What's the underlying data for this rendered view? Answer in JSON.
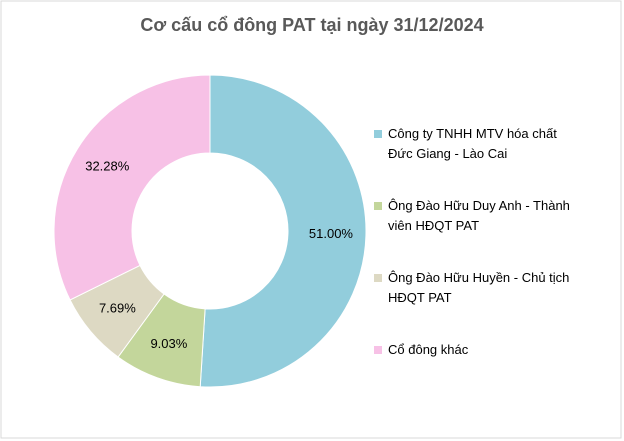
{
  "chart_data": {
    "type": "donut",
    "title": "Cơ cấu cổ đông PAT tại ngày 31/12/2024",
    "categories": [
      "Công ty TNHH MTV hóa chất Đức Giang - Lào Cai",
      "Ông Đào Hữu Duy Anh - Thành viên HĐQT PAT",
      "Ông Đào Hữu Huyền - Chủ tịch HĐQT PAT",
      "Cổ đông khác"
    ],
    "values": [
      51.0,
      9.03,
      7.69,
      32.28
    ],
    "value_labels": [
      "51.00%",
      "9.03%",
      "7.69%",
      "32.28%"
    ],
    "colors": [
      "#92cddc",
      "#c3d69b",
      "#ddd9c3",
      "#f7c1e6"
    ],
    "legend": "right"
  }
}
